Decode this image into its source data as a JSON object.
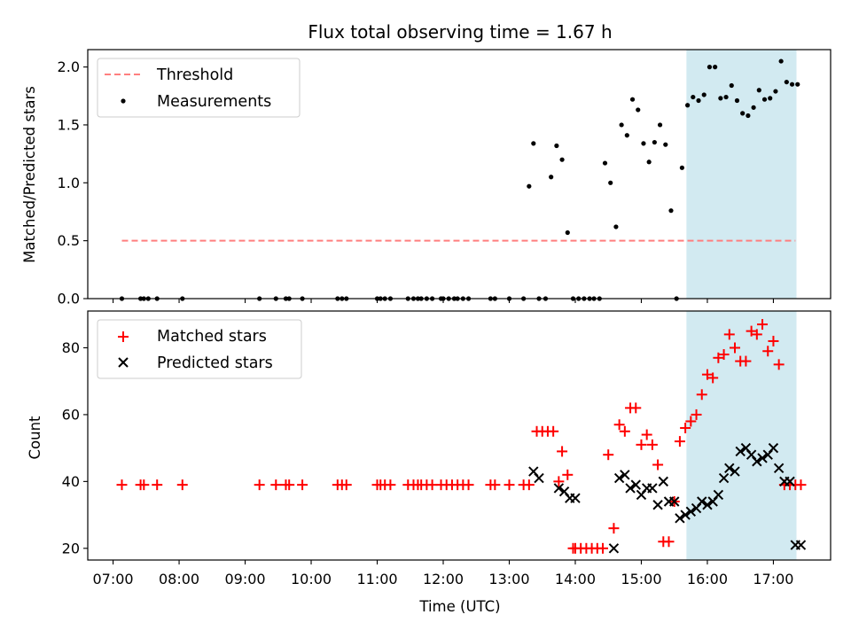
{
  "chart_data": [
    {
      "panel": "top",
      "type": "scatter",
      "title": "Flux total observing time = 1.67 h",
      "ylabel": "Matched/Predicted stars",
      "xlabel": "",
      "ylim": [
        0,
        2.15
      ],
      "yticks": [
        "0.0",
        "0.5",
        "1.0",
        "1.5",
        "2.0"
      ],
      "ytick_values": [
        0.0,
        0.5,
        1.0,
        1.5,
        2.0
      ],
      "shaded_region": {
        "x_start": "15:41",
        "x_end": "17:21",
        "color": "#add8e6"
      },
      "legend": {
        "placement": "top-left",
        "entries": [
          "Threshold",
          "Measurements"
        ]
      },
      "series": [
        {
          "name": "Threshold",
          "style": "dashed-line",
          "color": "#ff7f7f",
          "x": [
            "07:08",
            "17:20"
          ],
          "y": [
            0.5,
            0.5
          ]
        },
        {
          "name": "Measurements",
          "style": "dot",
          "color": "#000000",
          "x": [
            "07:08",
            "07:25",
            "07:28",
            "07:32",
            "07:40",
            "08:03",
            "09:13",
            "09:28",
            "09:37",
            "09:40",
            "09:52",
            "10:24",
            "10:28",
            "10:32",
            "11:00",
            "11:03",
            "11:07",
            "11:12",
            "11:28",
            "11:33",
            "11:37",
            "11:40",
            "11:45",
            "11:50",
            "11:58",
            "12:00",
            "12:05",
            "12:10",
            "12:13",
            "12:18",
            "12:23",
            "12:43",
            "12:47",
            "13:00",
            "13:13",
            "13:18",
            "13:22",
            "13:27",
            "13:33",
            "13:38",
            "13:43",
            "13:48",
            "13:53",
            "13:58",
            "14:03",
            "14:08",
            "14:13",
            "14:17",
            "14:22",
            "14:27",
            "14:32",
            "14:37",
            "14:42",
            "14:47",
            "14:52",
            "14:57",
            "15:02",
            "15:07",
            "15:12",
            "15:17",
            "15:22",
            "15:27",
            "15:32",
            "15:37",
            "15:42",
            "15:47",
            "15:52",
            "15:57",
            "16:02",
            "16:07",
            "16:12",
            "16:17",
            "16:22",
            "16:27",
            "16:32",
            "16:37",
            "16:42",
            "16:47",
            "16:52",
            "16:57",
            "17:02",
            "17:07",
            "17:12",
            "17:17",
            "17:22"
          ],
          "y": [
            0,
            0,
            0,
            0,
            0,
            0,
            0,
            0,
            0,
            0,
            0,
            0,
            0,
            0,
            0,
            0,
            0,
            0,
            0,
            0,
            0,
            0,
            0,
            0,
            0,
            0,
            0,
            0,
            0,
            0,
            0,
            0,
            0,
            0,
            0,
            0.97,
            1.34,
            0,
            0,
            1.05,
            1.32,
            1.2,
            0.57,
            0,
            0,
            0,
            0,
            0,
            0,
            1.17,
            1.0,
            0.62,
            1.5,
            1.41,
            1.72,
            1.63,
            1.34,
            1.18,
            1.35,
            1.5,
            1.33,
            0.76,
            0,
            1.13,
            1.67,
            1.74,
            1.71,
            1.76,
            2.0,
            2.0,
            1.73,
            1.74,
            1.84,
            1.71,
            1.6,
            1.58,
            1.65,
            1.8,
            1.72,
            1.73,
            1.79,
            2.05,
            1.87,
            1.85,
            1.85
          ]
        }
      ]
    },
    {
      "panel": "bottom",
      "type": "scatter",
      "title": "",
      "ylabel": "Count",
      "xlabel": "Time (UTC)",
      "ylim": [
        16.5,
        91
      ],
      "yticks": [
        "20",
        "40",
        "60",
        "80"
      ],
      "ytick_values": [
        20,
        40,
        60,
        80
      ],
      "xlim": [
        "06:37",
        "17:52"
      ],
      "xticks": [
        "07:00",
        "08:00",
        "09:00",
        "10:00",
        "11:00",
        "12:00",
        "13:00",
        "14:00",
        "15:00",
        "16:00",
        "17:00"
      ],
      "shaded_region": {
        "x_start": "15:41",
        "x_end": "17:21",
        "color": "#add8e6"
      },
      "legend": {
        "placement": "top-left",
        "entries": [
          "Matched stars",
          "Predicted stars"
        ]
      },
      "series": [
        {
          "name": "Matched stars",
          "marker": "+",
          "color": "#ff0000",
          "x": [
            "07:08",
            "07:25",
            "07:28",
            "07:40",
            "08:03",
            "09:13",
            "09:28",
            "09:37",
            "09:40",
            "09:52",
            "10:24",
            "10:28",
            "10:32",
            "11:00",
            "11:03",
            "11:07",
            "11:12",
            "11:28",
            "11:33",
            "11:37",
            "11:40",
            "11:45",
            "11:50",
            "11:58",
            "12:03",
            "12:08",
            "12:13",
            "12:18",
            "12:23",
            "12:43",
            "12:47",
            "13:00",
            "13:13",
            "13:18",
            "13:25",
            "13:30",
            "13:35",
            "13:40",
            "13:45",
            "13:48",
            "13:53",
            "13:58",
            "14:00",
            "14:05",
            "14:10",
            "14:15",
            "14:20",
            "14:25",
            "14:30",
            "14:35",
            "14:40",
            "14:45",
            "14:50",
            "14:55",
            "15:00",
            "15:05",
            "15:10",
            "15:15",
            "15:20",
            "15:25",
            "15:30",
            "15:35",
            "15:40",
            "15:45",
            "15:50",
            "15:55",
            "16:00",
            "16:05",
            "16:10",
            "16:15",
            "16:20",
            "16:25",
            "16:30",
            "16:35",
            "16:40",
            "16:45",
            "16:50",
            "16:55",
            "17:00",
            "17:05",
            "17:10",
            "17:15",
            "17:20",
            "17:25"
          ],
          "y": [
            39,
            39,
            39,
            39,
            39,
            39,
            39,
            39,
            39,
            39,
            39,
            39,
            39,
            39,
            39,
            39,
            39,
            39,
            39,
            39,
            39,
            39,
            39,
            39,
            39,
            39,
            39,
            39,
            39,
            39,
            39,
            39,
            39,
            39,
            55,
            55,
            55,
            55,
            40,
            49,
            42,
            20,
            20,
            20,
            20,
            20,
            20,
            20,
            48,
            26,
            57,
            55,
            62,
            62,
            51,
            54,
            51,
            45,
            22,
            22,
            34,
            52,
            56,
            58,
            60,
            66,
            72,
            71,
            77,
            78,
            84,
            80,
            76,
            76,
            85,
            84,
            87,
            79,
            82,
            75,
            39,
            39,
            39,
            39
          ]
        },
        {
          "name": "Predicted stars",
          "marker": "x",
          "color": "#000000",
          "x": [
            "13:22",
            "13:27",
            "13:45",
            "13:50",
            "13:55",
            "14:00",
            "14:35",
            "14:40",
            "14:45",
            "14:50",
            "14:55",
            "15:00",
            "15:05",
            "15:10",
            "15:15",
            "15:20",
            "15:25",
            "15:30",
            "15:35",
            "15:40",
            "15:45",
            "15:50",
            "15:55",
            "16:00",
            "16:05",
            "16:10",
            "16:15",
            "16:20",
            "16:25",
            "16:30",
            "16:35",
            "16:40",
            "16:45",
            "16:50",
            "16:55",
            "17:00",
            "17:05",
            "17:10",
            "17:15",
            "17:20",
            "17:25"
          ],
          "y": [
            43,
            41,
            38,
            37,
            35,
            35,
            20,
            41,
            42,
            38,
            39,
            36,
            38,
            38,
            33,
            40,
            34,
            34,
            29,
            30,
            31,
            32,
            34,
            33,
            34,
            36,
            41,
            44,
            43,
            49,
            50,
            48,
            46,
            47,
            48,
            50,
            44,
            40,
            40,
            21,
            21
          ]
        }
      ]
    }
  ]
}
